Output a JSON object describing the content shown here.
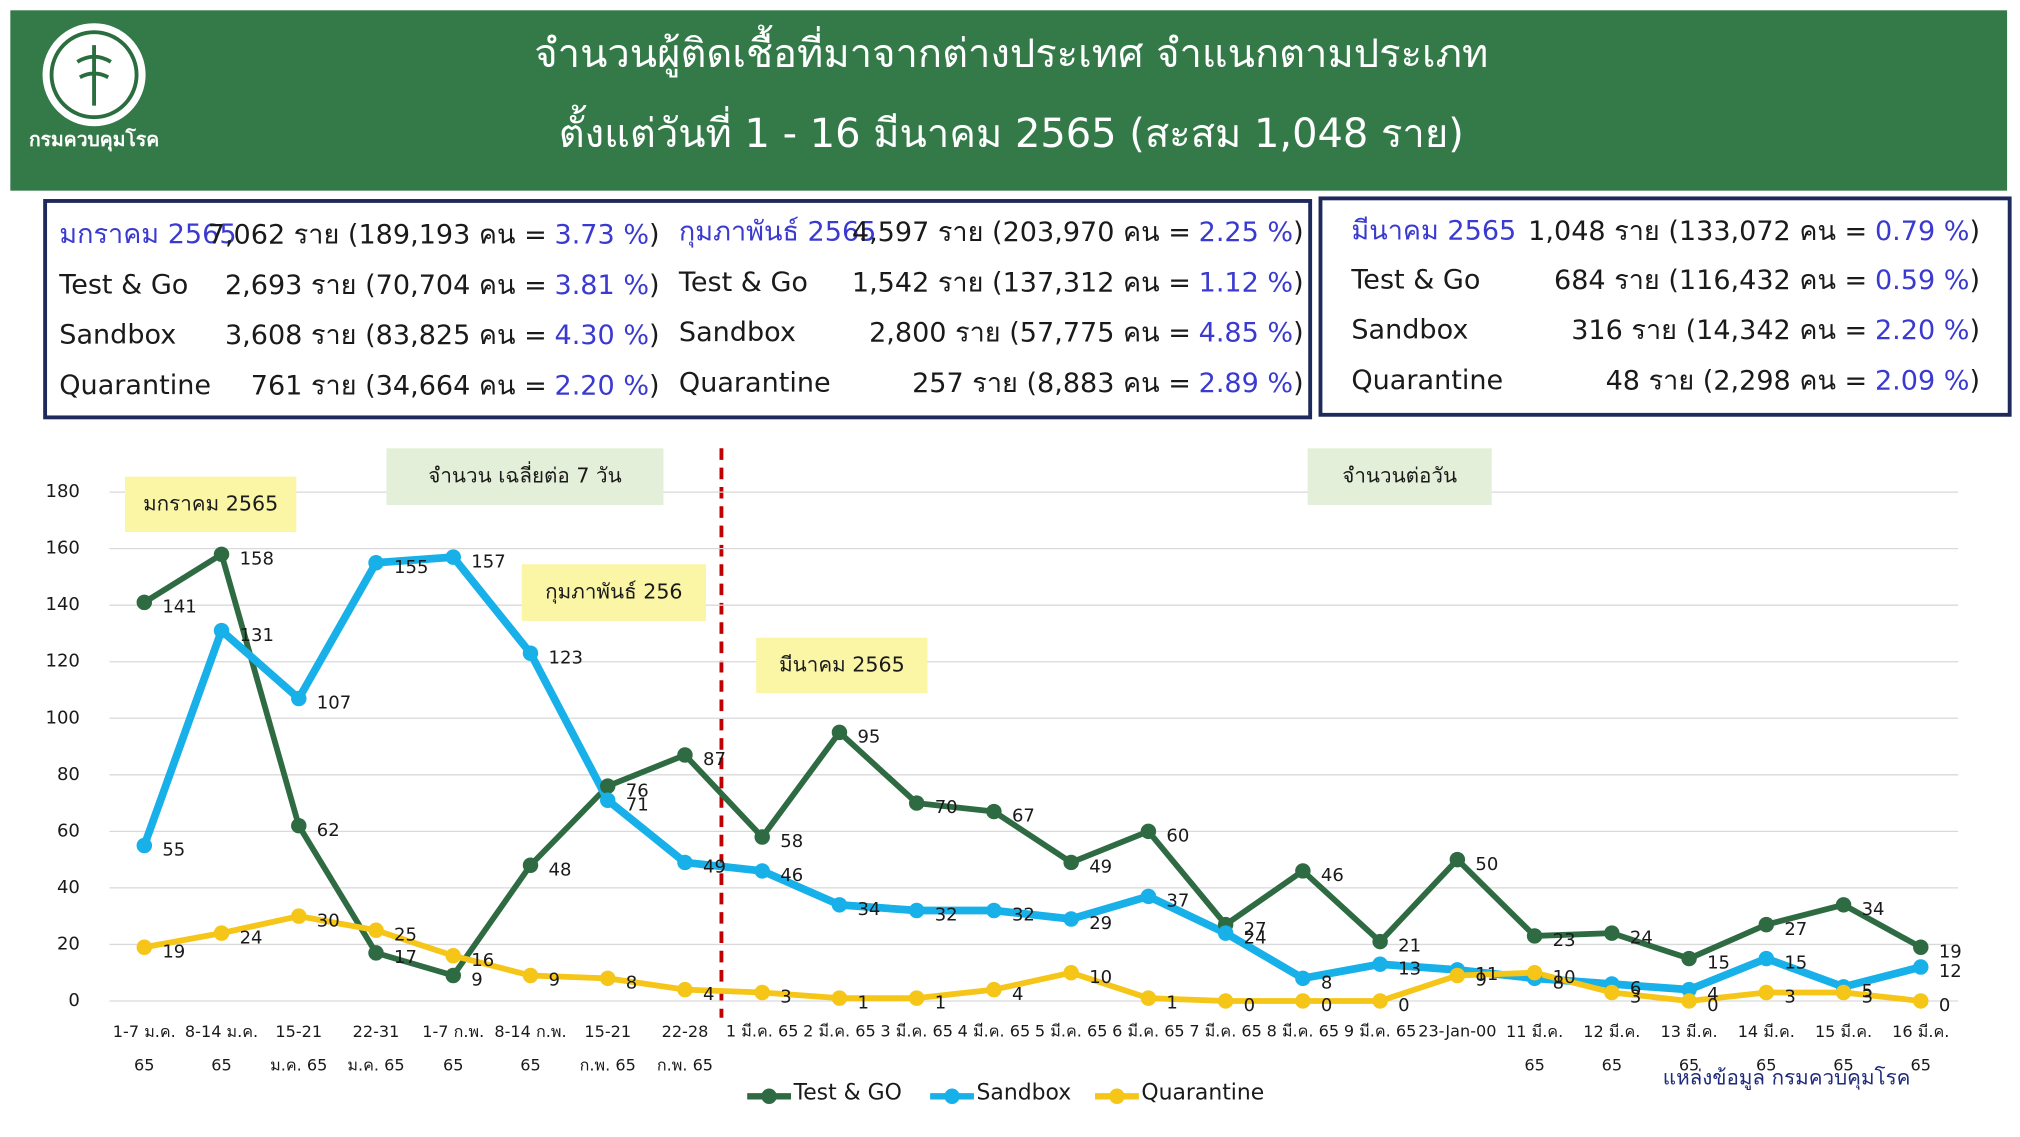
{
  "header": {
    "logo_text": "กรมควบคุมโรค",
    "title_lines": [
      "จำนวนผู้ติดเชื้อที่มาจากต่างประเทศ จำแนกตามประเภท",
      "ตั้งแต่วันที่  1 - 16  มีนาคม  2565 (สะสม 1,048 ราย)"
    ]
  },
  "summary": [
    {
      "rows": [
        [
          "มกราคม 2565",
          "7,062 ราย (189,193 คน =",
          "3.73 %",
          ")"
        ],
        [
          "Test & Go",
          "2,693 ราย (70,704 คน =",
          "3.81 %",
          ")"
        ],
        [
          "Sandbox",
          "3,608 ราย (83,825 คน =",
          "4.30 %",
          ")"
        ],
        [
          "Quarantine",
          "761 ราย (34,664 คน =",
          "2.20 %",
          ")"
        ]
      ]
    },
    {
      "rows": [
        [
          "กุมภาพันธ์ 2565",
          "4,597 ราย (203,970 คน =",
          "2.25 %",
          ")"
        ],
        [
          "Test & Go",
          "1,542 ราย (137,312 คน  =",
          "1.12 %",
          ")"
        ],
        [
          "Sandbox",
          "2,800 ราย (57,775 คน  =",
          "4.85 %",
          ")"
        ],
        [
          "Quarantine",
          "257 ราย (8,883 คน  =",
          "2.89 %",
          ")"
        ]
      ]
    },
    {
      "rows": [
        [
          "มีนาคม 2565",
          "1,048 ราย (133,072 คน =",
          "0.79 %",
          ")"
        ],
        [
          "Test & Go",
          "684 ราย (116,432 คน =",
          "0.59 %",
          ")"
        ],
        [
          "Sandbox",
          "316 ราย (14,342 คน  =",
          "2.20 %",
          ")"
        ],
        [
          "Quarantine",
          "48 ราย (2,298 คน  =",
          "2.09 %",
          ")"
        ]
      ]
    }
  ],
  "chart_data": {
    "type": "line",
    "categories": [
      "1-7 ม.ค.\n65",
      "8-14 ม.ค.\n65",
      "15-21\nม.ค. 65",
      "22-31\nม.ค. 65",
      "1-7 ก.พ.\n65",
      "8-14 ก.พ.\n65",
      "15-21\nก.พ. 65",
      "22-28\nก.พ. 65",
      "1 มี.ค. 65",
      "2 มี.ค. 65",
      "3 มี.ค. 65",
      "4 มี.ค. 65",
      "5 มี.ค. 65",
      "6 มี.ค. 65",
      "7 มี.ค. 65",
      "8 มี.ค. 65",
      "9 มี.ค. 65",
      "23-Jan-00",
      "11 มี.ค.\n65",
      "12 มี.ค.\n65",
      "13 มี.ค.\n65",
      "14 มี.ค.\n65",
      "15 มี.ค.\n65",
      "16 มี.ค.\n65"
    ],
    "series": [
      {
        "name": "Test & GO",
        "color": "#2e6b42",
        "values": [
          141,
          158,
          62,
          17,
          9,
          48,
          76,
          87,
          58,
          95,
          70,
          67,
          49,
          60,
          27,
          46,
          21,
          50,
          23,
          24,
          15,
          27,
          34,
          19
        ]
      },
      {
        "name": "Sandbox",
        "color": "#17b0e8",
        "values": [
          55,
          131,
          107,
          155,
          157,
          123,
          71,
          49,
          46,
          34,
          32,
          32,
          29,
          37,
          24,
          8,
          13,
          11,
          8,
          6,
          4,
          15,
          5,
          12
        ]
      },
      {
        "name": "Quarantine",
        "color": "#f5c518",
        "values": [
          19,
          24,
          30,
          25,
          16,
          9,
          8,
          4,
          3,
          1,
          1,
          4,
          10,
          1,
          0,
          0,
          0,
          9,
          10,
          3,
          0,
          3,
          3,
          0
        ]
      }
    ],
    "ylim": [
      0,
      180
    ],
    "yticks": [
      0,
      20,
      40,
      60,
      80,
      100,
      120,
      140,
      160,
      180
    ],
    "grid": true,
    "annotations": [
      "มกราคม 2565",
      "จำนวน เฉลี่ยต่อ 7 วัน",
      "กุมภาพันธ์ 256",
      "มีนาคม 2565",
      "จำนวนต่อวัน"
    ],
    "source": "แหล่งข้อมูล กรมควบคุมโรค"
  }
}
